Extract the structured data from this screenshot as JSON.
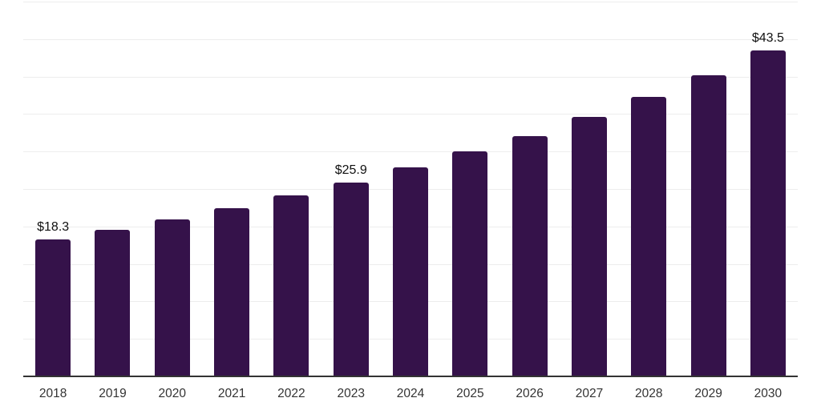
{
  "chart_data": {
    "type": "bar",
    "title": "",
    "xlabel": "",
    "ylabel": "",
    "categories": [
      "2018",
      "2019",
      "2020",
      "2021",
      "2022",
      "2023",
      "2024",
      "2025",
      "2026",
      "2027",
      "2028",
      "2029",
      "2030"
    ],
    "values": [
      18.3,
      19.6,
      20.9,
      22.4,
      24.1,
      25.9,
      27.9,
      30.0,
      32.1,
      34.6,
      37.3,
      40.2,
      43.5
    ],
    "data_labels": [
      {
        "category": "2018",
        "text": "$18.3"
      },
      {
        "category": "2023",
        "text": "$25.9"
      },
      {
        "category": "2030",
        "text": "$43.5"
      }
    ],
    "value_prefix": "$",
    "ylim": [
      0,
      50
    ],
    "gridline_interval": 5,
    "grid": "horizontal",
    "legend": "none",
    "bar_color": "#35124a",
    "gridline_color": "#ededed",
    "axis_line_color": "#333333",
    "tick_label_color": "#333333",
    "data_label_color": "#111111",
    "background_color": "#ffffff"
  }
}
